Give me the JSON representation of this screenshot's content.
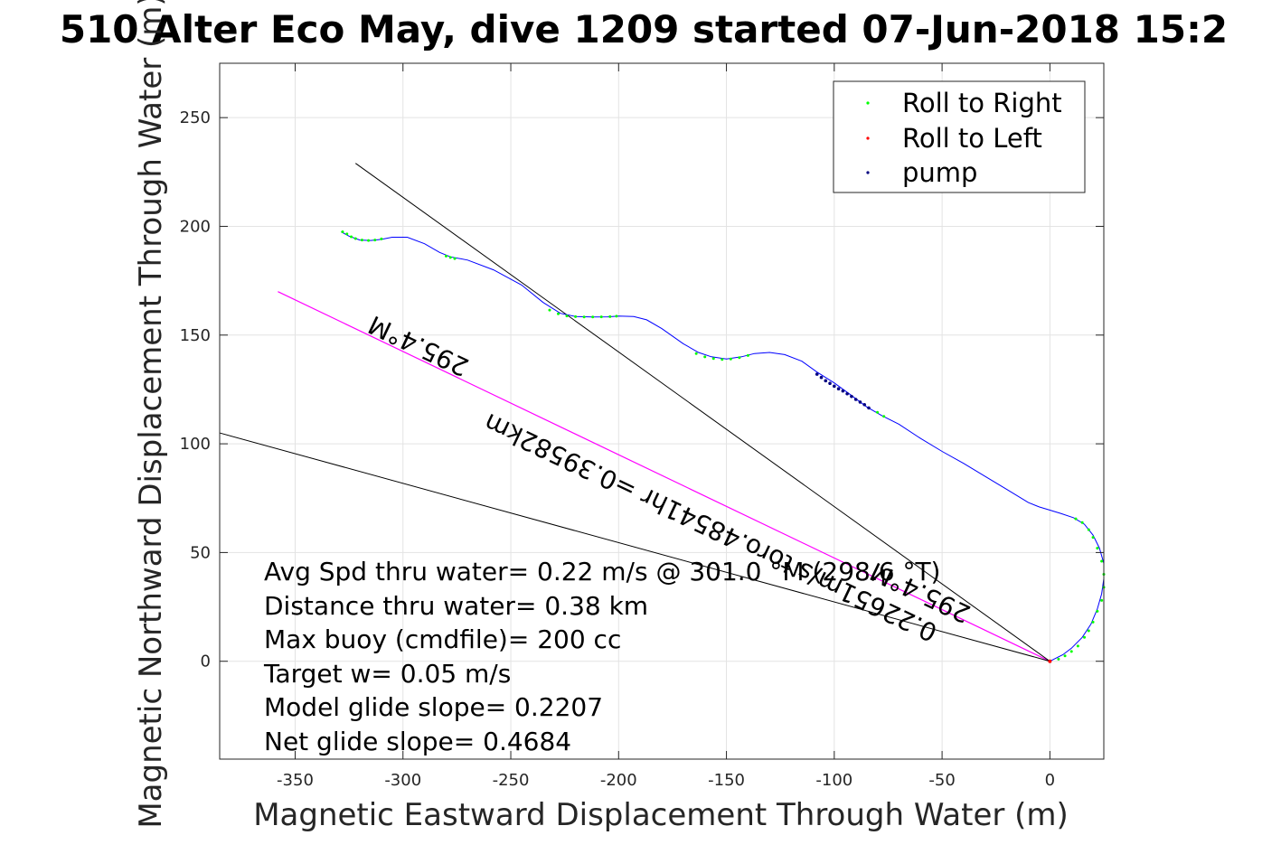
{
  "chart_data": {
    "type": "line",
    "title": "510 Alter Eco May, dive 1209 started 07-Jun-2018 15:2",
    "xlabel": "Magnetic Eastward Displacement Through Water (m)",
    "ylabel": "Magnetic Northward Displacement Through Water (m)",
    "xlim": [
      -385,
      25
    ],
    "ylim": [
      -45,
      275
    ],
    "xticks": [
      -350,
      -300,
      -250,
      -200,
      -150,
      -100,
      -50,
      0
    ],
    "yticks": [
      0,
      50,
      100,
      150,
      200,
      250
    ],
    "grid": true,
    "legend_position": "top-right",
    "colors": {
      "track": "#0000ff",
      "roll_right": "#00ff00",
      "roll_left": "#ff0000",
      "pump": "#000080",
      "heading_line": "#ff00ff",
      "bounds": "#000000"
    },
    "legend": [
      {
        "key": "roll_right",
        "label": "Roll to Right"
      },
      {
        "key": "roll_left",
        "label": "Roll to Left"
      },
      {
        "key": "pump",
        "label": "pump"
      }
    ],
    "track": {
      "x": [
        -328.7,
        -325,
        -320,
        -315,
        -310,
        -305,
        -298,
        -290,
        -283,
        -278,
        -270,
        -258,
        -245,
        -235,
        -227,
        -220,
        -212,
        -205,
        -200,
        -193,
        -187,
        -180,
        -170,
        -163,
        -157,
        -150,
        -143,
        -137,
        -130,
        -123,
        -115,
        -108,
        -100,
        -93,
        -85,
        -78,
        -70,
        -60,
        -50,
        -40,
        -30,
        -20,
        -10,
        -5,
        0,
        5,
        11,
        16,
        20,
        23,
        25,
        25,
        24,
        22,
        19,
        15,
        10,
        6,
        3,
        0
      ],
      "y": [
        197.5,
        195.5,
        193.7,
        193.5,
        194,
        195,
        195,
        192,
        188,
        186,
        184.5,
        180,
        173,
        165,
        160,
        158.5,
        158.3,
        158.4,
        158.7,
        158.5,
        157,
        153,
        146,
        142,
        140,
        139,
        140,
        141.5,
        142,
        141,
        138,
        133,
        128,
        123,
        117,
        113,
        109,
        102.5,
        96.5,
        91,
        85,
        79,
        73,
        71,
        69.5,
        68,
        66,
        63,
        58,
        52,
        45,
        38,
        31,
        24,
        17,
        11,
        6,
        3,
        1.5,
        0
      ]
    },
    "roll_right": {
      "x": [
        -328,
        -326,
        -324,
        -322,
        -319,
        -316,
        -313,
        -310,
        -280,
        -278,
        -276,
        -232,
        -228,
        -224,
        -220,
        -216,
        -212,
        -208,
        -204,
        -201,
        -164,
        -160,
        -156,
        -152,
        -148,
        -144,
        -140,
        -80,
        -77,
        12,
        15,
        18,
        20,
        22,
        24,
        25,
        25,
        24,
        22,
        20,
        18,
        16,
        13,
        10,
        7,
        4
      ],
      "y": [
        197.5,
        196.5,
        195.2,
        194.4,
        193.7,
        193.5,
        193.7,
        194.2,
        186.3,
        185.7,
        185.2,
        161.5,
        159.8,
        158.8,
        158.5,
        158.3,
        158.3,
        158.4,
        158.5,
        158.7,
        141.5,
        140,
        139.2,
        138.8,
        139,
        139.6,
        140.6,
        114.5,
        112.6,
        65.5,
        63.8,
        60.5,
        57,
        52,
        46,
        40,
        34,
        28,
        23,
        18,
        14,
        11,
        7,
        4.5,
        2.5,
        1
      ]
    },
    "roll_left": {
      "x": [
        0
      ],
      "y": [
        0
      ]
    },
    "pump": {
      "x": [
        -108,
        -106,
        -104,
        -102,
        -100,
        -98,
        -96,
        -94,
        -92,
        -90,
        -88,
        -86,
        -84
      ],
      "y": [
        132,
        130.5,
        129,
        127.8,
        126.5,
        125.3,
        124.3,
        123,
        121.8,
        120.4,
        119.2,
        118,
        116.5
      ]
    },
    "lines": [
      {
        "key": "heading_line",
        "x": [
          0,
          -358
        ],
        "y": [
          0,
          170
        ]
      },
      {
        "key": "bounds",
        "x": [
          0,
          -322
        ],
        "y": [
          0,
          229
        ]
      },
      {
        "key": "bounds",
        "x": [
          0,
          -385
        ],
        "y": [
          0,
          105
        ]
      }
    ],
    "rotated_labels": {
      "heading_far": "295.4°M",
      "distance_time": "0.22651m/s toro.48541hr =0.39582km",
      "heading_near": "295.4°M"
    },
    "annotations": [
      "Avg Spd thru water=  0.22 m/s @ 301.0 °M (298.6 °T)",
      "Distance thru water=  0.38 km",
      "Max buoy (cmdfile)= 200 cc",
      "Target w= 0.05 m/s",
      "Model glide slope= 0.2207",
      "Net glide slope= 0.4684"
    ]
  }
}
